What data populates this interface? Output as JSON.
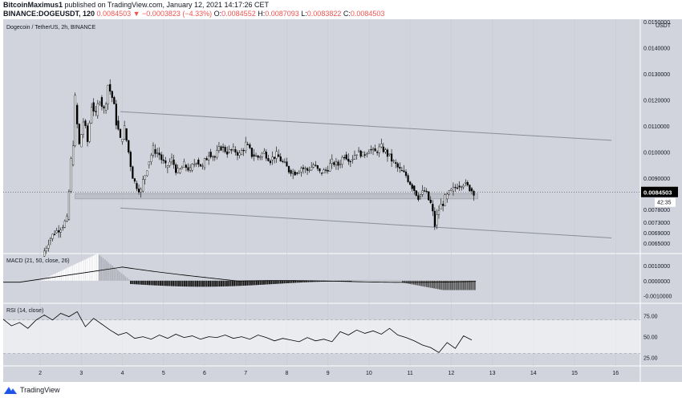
{
  "header": {
    "author": "BitcoinMaximus1",
    "published_text": "published on TradingView.com, January 12, 2021 14:17:26 CET",
    "symbol_line": "BINANCE:DOGEUSDT, 120",
    "last": "0.0084503",
    "change": "−0.0003823 (−4.33%)",
    "o_label": "O:",
    "o_value": "0.0084552",
    "h_label": "H:",
    "h_value": "0.0087093",
    "l_label": "L:",
    "l_value": "0.0083822",
    "c_label": "C:",
    "c_value": "0.0084503"
  },
  "footer": {
    "logo_text": "TradingView",
    "icon": "tradingview-logo-icon"
  },
  "colors": {
    "background": "#d1d4dc",
    "candle_up": "#ffffff",
    "candle_down": "#000000",
    "price_badge": "#000000",
    "channel_line": "#8a8e99",
    "rsi_band": "#ffffff"
  },
  "chart_data": [
    {
      "type": "candlestick",
      "title": "Dogecoin / TetherUS, 2h, BINANCE",
      "currency_label": "USDT",
      "x_ticks": [
        "2",
        "3",
        "4",
        "5",
        "6",
        "7",
        "8",
        "9",
        "10",
        "11",
        "12",
        "13",
        "14",
        "15",
        "16"
      ],
      "y_ticks": [
        "0.0150000",
        "0.0140000",
        "0.0130000",
        "0.0120000",
        "0.0110000",
        "0.0100000",
        "0.0090000",
        "0.0078000",
        "0.0073000",
        "0.0069000",
        "0.0065000"
      ],
      "last_price": "0.0084503",
      "countdown": "42:35",
      "ylim": [
        0.0061,
        0.0151
      ],
      "xlim": [
        1.1,
        16.6
      ],
      "close_series": [
        [
          2.05,
          0.006
        ],
        [
          2.2,
          0.0066
        ],
        [
          2.35,
          0.0069
        ],
        [
          2.5,
          0.0071
        ],
        [
          2.65,
          0.0074
        ],
        [
          2.75,
          0.0095
        ],
        [
          2.85,
          0.0118
        ],
        [
          2.95,
          0.0102
        ],
        [
          3.05,
          0.0112
        ],
        [
          3.15,
          0.0104
        ],
        [
          3.25,
          0.0119
        ],
        [
          3.35,
          0.0114
        ],
        [
          3.45,
          0.0121
        ],
        [
          3.55,
          0.0116
        ],
        [
          3.65,
          0.0126
        ],
        [
          3.75,
          0.0121
        ],
        [
          3.85,
          0.0112
        ],
        [
          3.95,
          0.0104
        ],
        [
          4.05,
          0.0109
        ],
        [
          4.15,
          0.01
        ],
        [
          4.3,
          0.0088
        ],
        [
          4.45,
          0.0085
        ],
        [
          4.6,
          0.0095
        ],
        [
          4.75,
          0.0101
        ],
        [
          4.9,
          0.0099
        ],
        [
          5.05,
          0.0094
        ],
        [
          5.2,
          0.0097
        ],
        [
          5.35,
          0.0092
        ],
        [
          5.5,
          0.0095
        ],
        [
          5.65,
          0.0093
        ],
        [
          5.8,
          0.0097
        ],
        [
          5.95,
          0.0094
        ],
        [
          6.1,
          0.01
        ],
        [
          6.25,
          0.0098
        ],
        [
          6.4,
          0.0102
        ],
        [
          6.55,
          0.01
        ],
        [
          6.7,
          0.0101
        ],
        [
          6.85,
          0.0099
        ],
        [
          7.0,
          0.0103
        ],
        [
          7.15,
          0.0099
        ],
        [
          7.3,
          0.0098
        ],
        [
          7.45,
          0.01
        ],
        [
          7.6,
          0.0097
        ],
        [
          7.75,
          0.0099
        ],
        [
          7.9,
          0.0096
        ],
        [
          8.05,
          0.0093
        ],
        [
          8.2,
          0.0092
        ],
        [
          8.35,
          0.0094
        ],
        [
          8.5,
          0.0093
        ],
        [
          8.65,
          0.0095
        ],
        [
          8.8,
          0.0092
        ],
        [
          8.95,
          0.0093
        ],
        [
          9.1,
          0.0096
        ],
        [
          9.25,
          0.0095
        ],
        [
          9.4,
          0.0099
        ],
        [
          9.55,
          0.0097
        ],
        [
          9.7,
          0.01
        ],
        [
          9.85,
          0.0099
        ],
        [
          10.0,
          0.0101
        ],
        [
          10.15,
          0.01
        ],
        [
          10.3,
          0.0102
        ],
        [
          10.45,
          0.0099
        ],
        [
          10.6,
          0.0096
        ],
        [
          10.75,
          0.0093
        ],
        [
          10.9,
          0.0091
        ],
        [
          11.05,
          0.0087
        ],
        [
          11.2,
          0.0083
        ],
        [
          11.35,
          0.0085
        ],
        [
          11.5,
          0.008
        ],
        [
          11.6,
          0.0072
        ],
        [
          11.7,
          0.0078
        ],
        [
          11.85,
          0.0082
        ],
        [
          12.0,
          0.0085
        ],
        [
          12.15,
          0.0087
        ],
        [
          12.3,
          0.0088
        ],
        [
          12.45,
          0.0086
        ],
        [
          12.55,
          0.00845
        ]
      ],
      "support_zone": {
        "from_x": 2.85,
        "to_x": 12.65,
        "y_low": 0.0082,
        "y_high": 0.0084
      },
      "channel": {
        "upper": {
          "x": [
            3.95,
            15.9
          ],
          "y": [
            0.01155,
            0.01045
          ]
        },
        "lower": {
          "x": [
            3.95,
            15.9
          ],
          "y": [
            0.00785,
            0.0067
          ]
        }
      }
    },
    {
      "type": "histogram",
      "title": "MACD (21, 50, close, 26)",
      "y_ticks": [
        "0.0010000",
        "0.0000000",
        "-0.0010000"
      ],
      "ylim": [
        -0.0015,
        0.0018
      ],
      "histogram_x": [
        2.0,
        12.6
      ],
      "signal_peak": 0.001
    },
    {
      "type": "line",
      "title": "RSI (14, close)",
      "y_ticks": [
        "75.00",
        "50.00",
        "25.00"
      ],
      "ylim": [
        15,
        90
      ],
      "band": [
        30,
        70
      ],
      "x": [
        1.1,
        1.3,
        1.5,
        1.7,
        1.9,
        2.1,
        2.3,
        2.5,
        2.7,
        2.9,
        3.1,
        3.3,
        3.5,
        3.7,
        3.9,
        4.1,
        4.3,
        4.5,
        4.7,
        4.9,
        5.1,
        5.3,
        5.5,
        5.7,
        5.9,
        6.1,
        6.3,
        6.5,
        6.7,
        6.9,
        7.1,
        7.3,
        7.5,
        7.7,
        7.9,
        8.1,
        8.3,
        8.5,
        8.7,
        8.9,
        9.1,
        9.3,
        9.5,
        9.7,
        9.9,
        10.1,
        10.3,
        10.5,
        10.7,
        10.9,
        11.1,
        11.3,
        11.5,
        11.7,
        11.9,
        12.1,
        12.3,
        12.5
      ],
      "y": [
        71,
        63,
        67,
        60,
        70,
        76,
        70,
        78,
        74,
        80,
        62,
        72,
        65,
        58,
        52,
        55,
        48,
        50,
        47,
        52,
        48,
        53,
        49,
        51,
        47,
        50,
        49,
        52,
        48,
        50,
        47,
        52,
        49,
        45,
        48,
        46,
        44,
        49,
        45,
        47,
        44,
        56,
        52,
        58,
        54,
        57,
        53,
        60,
        52,
        49,
        45,
        40,
        37,
        31,
        43,
        36,
        51,
        46
      ]
    }
  ]
}
